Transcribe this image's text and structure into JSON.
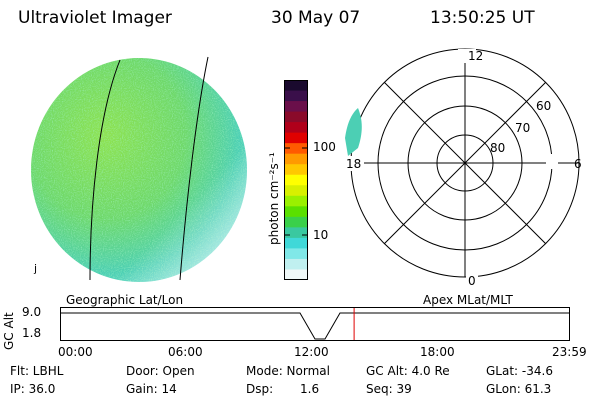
{
  "header": {
    "instrument": "Ultraviolet Imager",
    "date": "30 May 07",
    "time": "13:50:25 UT"
  },
  "colorbar": {
    "unit_label": "photon cm⁻²s⁻¹",
    "ticks": [
      "100",
      "10"
    ],
    "colors": [
      "#1a0a2e",
      "#3a0f4a",
      "#6a0f4a",
      "#8a0a2a",
      "#b0001a",
      "#e00000",
      "#ff5a00",
      "#ff9a00",
      "#ffc800",
      "#ffff00",
      "#d8f000",
      "#9af000",
      "#5ae000",
      "#3ad04a",
      "#3ac8a0",
      "#40d8d8",
      "#80e8e8",
      "#c0f0f0",
      "#f0f8f8"
    ]
  },
  "polar_plot": {
    "labels": {
      "top": "12",
      "right": "6",
      "bottom": "0",
      "left": "18",
      "lat_60": "60",
      "lat_70": "70",
      "lat_80": "80"
    }
  },
  "timeline": {
    "left_label": "Geographic Lat/Lon",
    "right_label": "Apex MLat/MLT",
    "y_axis_label": "GC Alt",
    "y_top": "9.0",
    "y_bottom": "1.8",
    "time_ticks": [
      "00:00",
      "06:00",
      "12:00",
      "18:00",
      "23:59"
    ],
    "current_time_fraction": 0.577
  },
  "footer": {
    "flt": "Flt: LBHL",
    "ip": "IP: 36.0",
    "door": "Door: Open",
    "gain": "Gain: 14",
    "mode": "Mode: Normal",
    "dsp_label": "Dsp:",
    "dsp_value": "1.6",
    "gc_alt": "GC Alt: 4.0 Re",
    "seq": "Seq: 39",
    "glat": "GLat: -34.6",
    "glon": "GLon: 61.3"
  },
  "side_mark": "j"
}
